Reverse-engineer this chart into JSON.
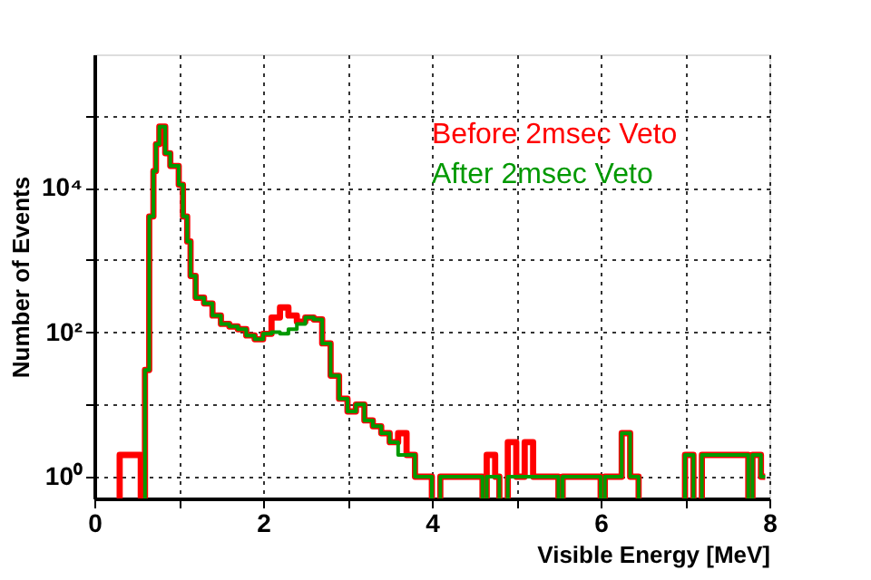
{
  "chart_data": {
    "type": "step",
    "xlabel": "Visible Energy [MeV]",
    "ylabel": "Number of Events",
    "xlim": [
      0,
      8
    ],
    "xticks": [
      0,
      {
        "value": 1,
        "label": null
      },
      2,
      {
        "value": 3,
        "label": null
      },
      4,
      {
        "value": 5,
        "label": null
      },
      6,
      {
        "value": 7,
        "label": null
      },
      8
    ],
    "ylim": [
      0.5,
      700000
    ],
    "yticks": [
      {
        "value": 1,
        "label": "10⁰"
      },
      {
        "value": 10,
        "label": null
      },
      {
        "value": 100,
        "label": "10²"
      },
      {
        "value": 1000,
        "label": null
      },
      {
        "value": 10000,
        "label": "10⁴"
      },
      {
        "value": 100000,
        "label": null
      }
    ],
    "log": true,
    "grid": true,
    "legend": "top right",
    "line_style": "solid",
    "marker": "none",
    "series": [
      {
        "name": "Before 2msec Veto",
        "color": "#ff0000",
        "x": [
          0.3,
          0.35,
          0.4,
          0.45,
          0.5,
          0.55,
          0.6,
          0.65,
          0.7,
          0.73,
          0.77,
          0.84,
          0.9,
          1.0,
          1.05,
          1.1,
          1.14,
          1.2,
          1.3,
          1.4,
          1.5,
          1.6,
          1.7,
          1.8,
          1.9,
          2.0,
          2.1,
          2.2,
          2.3,
          2.4,
          2.5,
          2.6,
          2.7,
          2.8,
          2.9,
          3.0,
          3.1,
          3.2,
          3.3,
          3.4,
          3.5,
          3.6,
          3.7,
          3.8,
          3.9,
          4.0,
          4.1,
          4.15,
          4.2,
          4.25,
          4.3,
          4.6,
          4.65,
          4.7,
          4.75,
          4.8,
          4.9,
          4.95,
          5.0,
          5.05,
          5.1,
          5.15,
          5.2,
          5.25,
          5.5,
          5.55,
          5.6,
          5.65,
          6.0,
          6.05,
          6.1,
          6.15,
          6.2,
          6.25,
          6.3,
          6.35,
          6.4,
          6.45,
          7.0,
          7.05,
          7.1,
          7.2,
          7.25,
          7.75,
          7.8,
          7.85,
          7.9,
          7.95
        ],
        "values": [
          2,
          2,
          2,
          2,
          2,
          null,
          30,
          4000,
          17000,
          40000,
          70000,
          30000,
          20000,
          11000,
          4000,
          1800,
          600,
          300,
          250,
          170,
          130,
          120,
          110,
          90,
          80,
          95,
          160,
          220,
          170,
          140,
          160,
          150,
          70,
          25,
          12,
          8,
          10,
          6,
          5,
          4,
          3,
          4,
          2,
          1,
          1,
          null,
          1,
          1,
          1,
          1,
          1,
          null,
          2,
          2,
          1,
          null,
          3,
          3,
          1,
          1,
          3,
          3,
          1,
          1,
          null,
          1,
          1,
          1,
          null,
          1,
          1,
          1,
          1,
          4,
          4,
          1,
          1,
          null,
          2,
          2,
          null,
          2,
          2,
          null,
          2,
          2,
          1,
          1
        ]
      },
      {
        "name": "After 2msec Veto",
        "color": "#009900",
        "x": [
          0.6,
          0.65,
          0.7,
          0.73,
          0.77,
          0.84,
          0.9,
          1.0,
          1.05,
          1.1,
          1.14,
          1.2,
          1.3,
          1.4,
          1.5,
          1.6,
          1.7,
          1.8,
          1.9,
          2.0,
          2.1,
          2.2,
          2.3,
          2.4,
          2.5,
          2.6,
          2.7,
          2.8,
          2.9,
          3.0,
          3.1,
          3.2,
          3.3,
          3.4,
          3.5,
          3.6,
          3.7,
          3.8,
          3.9,
          4.0,
          4.1,
          4.15,
          4.2,
          4.25,
          4.3,
          4.6,
          4.65,
          4.7,
          4.75,
          4.8,
          4.9,
          4.95,
          5.0,
          5.05,
          5.1,
          5.15,
          5.2,
          5.25,
          5.5,
          5.55,
          5.6,
          5.65,
          6.0,
          6.05,
          6.1,
          6.15,
          6.2,
          6.25,
          6.3,
          6.35,
          6.4,
          6.45,
          7.0,
          7.05,
          7.1,
          7.2,
          7.25,
          7.75,
          7.8,
          7.85,
          7.9,
          7.95
        ],
        "values": [
          30,
          4000,
          17000,
          40000,
          70000,
          30000,
          20000,
          11000,
          4000,
          1800,
          600,
          300,
          250,
          170,
          130,
          120,
          110,
          90,
          80,
          95,
          100,
          95,
          110,
          130,
          160,
          150,
          70,
          25,
          12,
          8,
          10,
          6,
          5,
          4,
          3,
          2,
          2,
          1,
          1,
          null,
          1,
          1,
          1,
          1,
          1,
          null,
          1,
          1,
          1,
          null,
          1,
          1,
          1,
          1,
          1,
          1,
          1,
          1,
          null,
          1,
          1,
          1,
          null,
          1,
          1,
          1,
          1,
          4,
          4,
          1,
          1,
          null,
          2,
          2,
          null,
          2,
          2,
          null,
          2,
          2,
          1,
          1
        ]
      }
    ]
  }
}
